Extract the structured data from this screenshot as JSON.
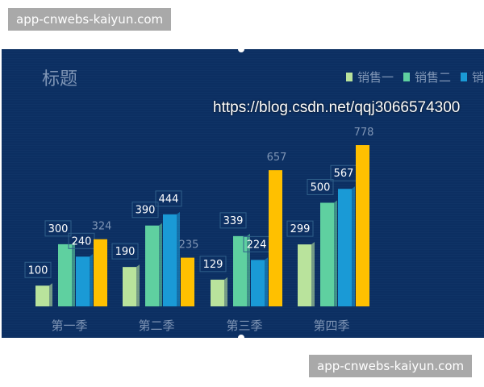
{
  "watermarks": {
    "top": "app-cnwebs-kaiyun.com",
    "bottom": "app-cnwebs-kaiyun.com",
    "overlay": "https://blog.csdn.net/qqj3066574300"
  },
  "chart_data": {
    "type": "bar",
    "title": "标题",
    "categories": [
      "第一季",
      "第二季",
      "第三季",
      "第四季"
    ],
    "series": [
      {
        "name": "销售一",
        "color": "#b9e39c",
        "values": [
          100,
          190,
          129,
          299
        ]
      },
      {
        "name": "销售二",
        "color": "#5fd0a0",
        "values": [
          300,
          390,
          339,
          500
        ]
      },
      {
        "name": "销",
        "color": "#1a9ad6",
        "values": [
          240,
          444,
          224,
          567
        ]
      },
      {
        "color": "#ffc000",
        "values": [
          324,
          235,
          657,
          778
        ]
      }
    ],
    "ylim": [
      0,
      800
    ],
    "grid": false,
    "legend": "top-right"
  }
}
